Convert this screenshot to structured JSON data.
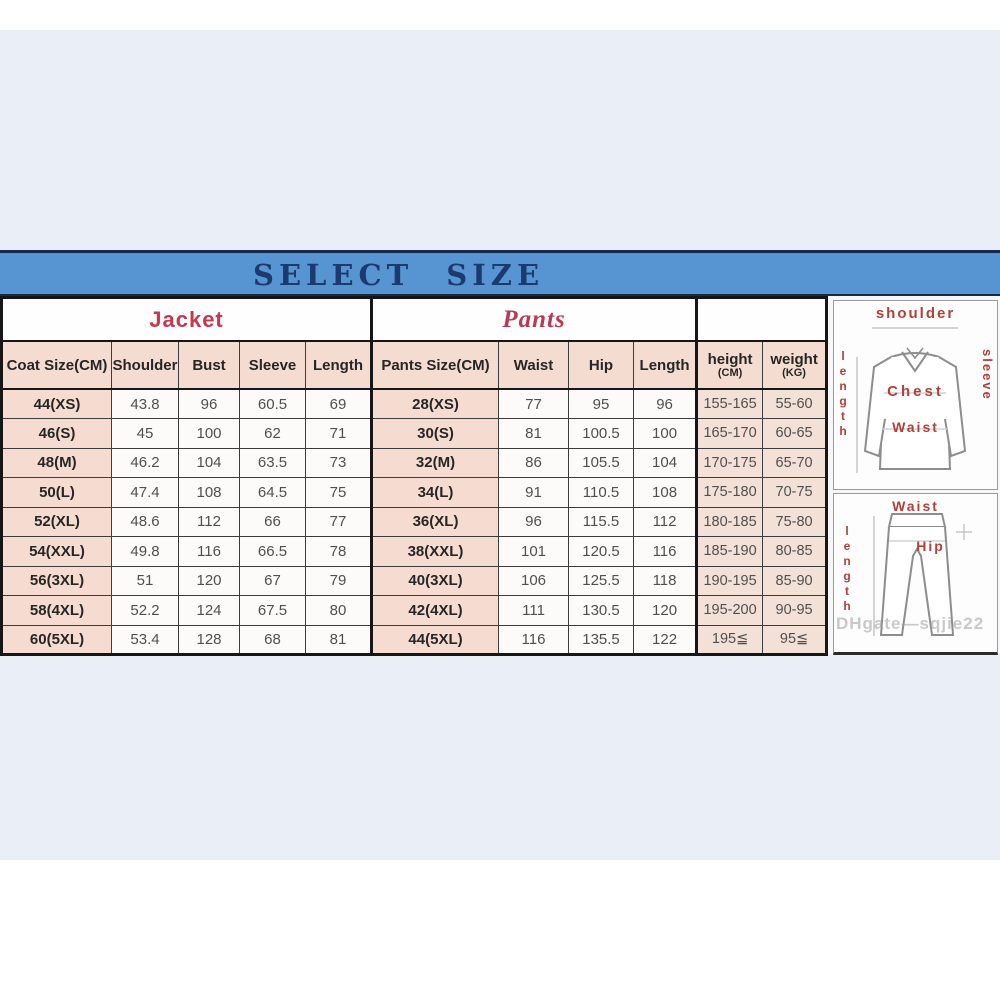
{
  "title": "SELECT SIZE",
  "jacket_section": {
    "label": "Jacket",
    "headers": {
      "size": "Coat Size(CM)",
      "shoulder": "Shoulder",
      "bust": "Bust",
      "sleeve": "Sleeve",
      "length": "Length"
    }
  },
  "pants_section": {
    "label": "Pants",
    "headers": {
      "size": "Pants Size(CM)",
      "waist": "Waist",
      "hip": "Hip",
      "length": "Length"
    }
  },
  "body_headers": {
    "height": "height",
    "height_unit": "(CM)",
    "weight": "weight",
    "weight_unit": "(KG)"
  },
  "rows": [
    {
      "jacket_size": "44(XS)",
      "shoulder": "43.8",
      "bust": "96",
      "sleeve": "60.5",
      "jacket_length": "69",
      "pants_size": "28(XS)",
      "waist": "77",
      "hip": "95",
      "pants_length": "96",
      "height": "155-165",
      "weight": "55-60"
    },
    {
      "jacket_size": "46(S)",
      "shoulder": "45",
      "bust": "100",
      "sleeve": "62",
      "jacket_length": "71",
      "pants_size": "30(S)",
      "waist": "81",
      "hip": "100.5",
      "pants_length": "100",
      "height": "165-170",
      "weight": "60-65"
    },
    {
      "jacket_size": "48(M)",
      "shoulder": "46.2",
      "bust": "104",
      "sleeve": "63.5",
      "jacket_length": "73",
      "pants_size": "32(M)",
      "waist": "86",
      "hip": "105.5",
      "pants_length": "104",
      "height": "170-175",
      "weight": "65-70"
    },
    {
      "jacket_size": "50(L)",
      "shoulder": "47.4",
      "bust": "108",
      "sleeve": "64.5",
      "jacket_length": "75",
      "pants_size": "34(L)",
      "waist": "91",
      "hip": "110.5",
      "pants_length": "108",
      "height": "175-180",
      "weight": "70-75"
    },
    {
      "jacket_size": "52(XL)",
      "shoulder": "48.6",
      "bust": "112",
      "sleeve": "66",
      "jacket_length": "77",
      "pants_size": "36(XL)",
      "waist": "96",
      "hip": "115.5",
      "pants_length": "112",
      "height": "180-185",
      "weight": "75-80"
    },
    {
      "jacket_size": "54(XXL)",
      "shoulder": "49.8",
      "bust": "116",
      "sleeve": "66.5",
      "jacket_length": "78",
      "pants_size": "38(XXL)",
      "waist": "101",
      "hip": "120.5",
      "pants_length": "116",
      "height": "185-190",
      "weight": "80-85"
    },
    {
      "jacket_size": "56(3XL)",
      "shoulder": "51",
      "bust": "120",
      "sleeve": "67",
      "jacket_length": "79",
      "pants_size": "40(3XL)",
      "waist": "106",
      "hip": "125.5",
      "pants_length": "118",
      "height": "190-195",
      "weight": "85-90"
    },
    {
      "jacket_size": "58(4XL)",
      "shoulder": "52.2",
      "bust": "124",
      "sleeve": "67.5",
      "jacket_length": "80",
      "pants_size": "42(4XL)",
      "waist": "111",
      "hip": "130.5",
      "pants_length": "120",
      "height": "195-200",
      "weight": "90-95"
    },
    {
      "jacket_size": "60(5XL)",
      "shoulder": "53.4",
      "bust": "128",
      "sleeve": "68",
      "jacket_length": "81",
      "pants_size": "44(5XL)",
      "waist": "116",
      "hip": "135.5",
      "pants_length": "122",
      "height": "195≦",
      "weight": "95≦"
    }
  ],
  "diagrams": {
    "jacket": {
      "shoulder_label": "shoulder",
      "length_label": "length",
      "sleeve_label": "sleeve",
      "chest_label": "Chest",
      "waist_label": "Waist"
    },
    "pants": {
      "waist_label": "Waist",
      "length_label": "length",
      "hip_label": "Hip"
    },
    "watermark": "DHgate—sqjie22"
  },
  "colors": {
    "banner_blue": "#5795d2",
    "banner_text_navy": "#1c3a6e",
    "background_light_blue": "#e9eef7",
    "header_pink": "#f5dcd0",
    "range_pink": "#f3e1d7",
    "section_red": "#c7374e",
    "diagram_label_red": "#b0403a"
  }
}
